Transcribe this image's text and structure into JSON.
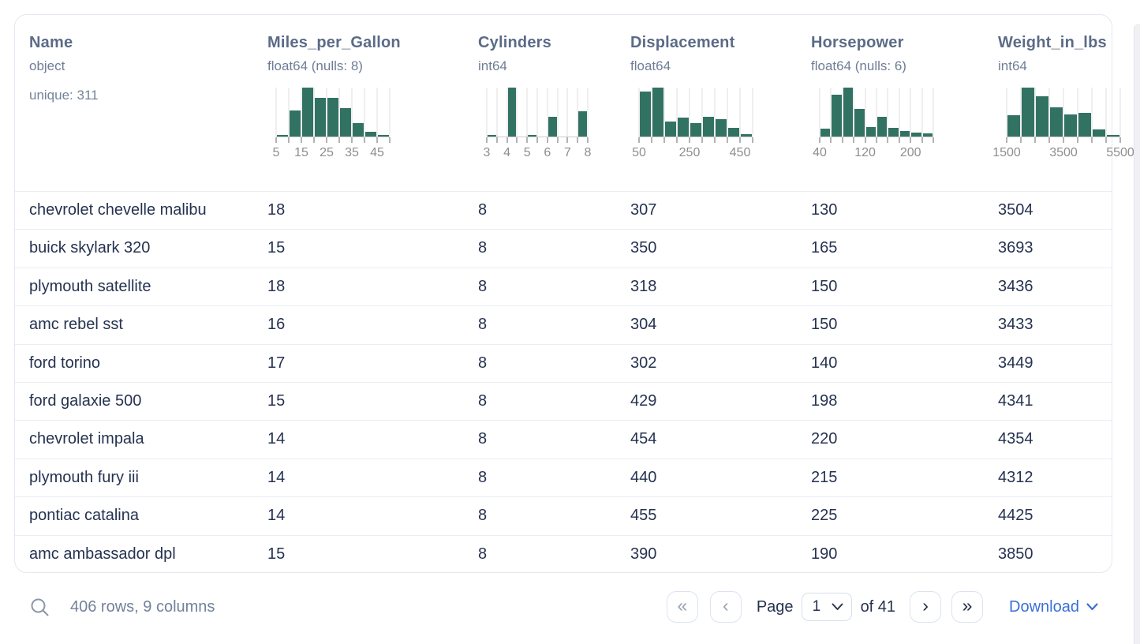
{
  "table": {
    "columns": [
      {
        "name": "Name",
        "dtype": "object",
        "extra": "unique: 311",
        "histogram": null
      },
      {
        "name": "Miles_per_Gallon",
        "dtype": "float64 (nulls: 8)",
        "histogram": {
          "bars": [
            3,
            53,
            100,
            79,
            79,
            58,
            28,
            9,
            3
          ],
          "tick_labels": [
            {
              "text": "5",
              "idx": 0
            },
            {
              "text": "15",
              "idx": 2
            },
            {
              "text": "25",
              "idx": 4
            },
            {
              "text": "35",
              "idx": 6
            },
            {
              "text": "45",
              "idx": 8
            }
          ]
        }
      },
      {
        "name": "Cylinders",
        "dtype": "int64",
        "histogram": {
          "bars": [
            3,
            0,
            100,
            0,
            3,
            0,
            41,
            0,
            0,
            52
          ],
          "tick_labels": [
            {
              "text": "3",
              "idx": 0
            },
            {
              "text": "4",
              "idx": 2
            },
            {
              "text": "5",
              "idx": 4
            },
            {
              "text": "6",
              "idx": 6
            },
            {
              "text": "7",
              "idx": 8
            },
            {
              "text": "8",
              "idx": 10
            }
          ]
        }
      },
      {
        "name": "Displacement",
        "dtype": "float64",
        "histogram": {
          "bars": [
            92,
            100,
            31,
            38,
            27,
            41,
            35,
            17,
            5
          ],
          "tick_labels": [
            {
              "text": "50",
              "idx": 0
            },
            {
              "text": "250",
              "idx": 4
            },
            {
              "text": "450",
              "idx": 8
            }
          ]
        }
      },
      {
        "name": "Horsepower",
        "dtype": "float64 (nulls: 6)",
        "histogram": {
          "bars": [
            16,
            85,
            100,
            56,
            19,
            41,
            18,
            11,
            8,
            6
          ],
          "tick_labels": [
            {
              "text": "40",
              "idx": 0
            },
            {
              "text": "120",
              "idx": 4
            },
            {
              "text": "200",
              "idx": 8
            }
          ]
        }
      },
      {
        "name": "Weight_in_lbs",
        "dtype": "int64",
        "histogram": {
          "bars": [
            43,
            100,
            83,
            60,
            45,
            48,
            15,
            3
          ],
          "tick_labels": [
            {
              "text": "1500",
              "idx": 0
            },
            {
              "text": "3500",
              "idx": 4
            },
            {
              "text": "5500",
              "idx": 8
            }
          ]
        }
      }
    ],
    "rows": [
      [
        "chevrolet chevelle malibu",
        "18",
        "8",
        "307",
        "130",
        "3504"
      ],
      [
        "buick skylark 320",
        "15",
        "8",
        "350",
        "165",
        "3693"
      ],
      [
        "plymouth satellite",
        "18",
        "8",
        "318",
        "150",
        "3436"
      ],
      [
        "amc rebel sst",
        "16",
        "8",
        "304",
        "150",
        "3433"
      ],
      [
        "ford torino",
        "17",
        "8",
        "302",
        "140",
        "3449"
      ],
      [
        "ford galaxie 500",
        "15",
        "8",
        "429",
        "198",
        "4341"
      ],
      [
        "chevrolet impala",
        "14",
        "8",
        "454",
        "220",
        "4354"
      ],
      [
        "plymouth fury iii",
        "14",
        "8",
        "440",
        "215",
        "4312"
      ],
      [
        "pontiac catalina",
        "14",
        "8",
        "455",
        "225",
        "4425"
      ],
      [
        "amc ambassador dpl",
        "15",
        "8",
        "390",
        "190",
        "3850"
      ]
    ]
  },
  "footer": {
    "stats": "406 rows, 9 columns",
    "pagination": {
      "first_glyph": "«",
      "prev_glyph": "‹",
      "page_label": "Page",
      "page_value": "1",
      "total_label": "of 41",
      "next_glyph": "›",
      "last_glyph": "»"
    },
    "download_label": "Download"
  },
  "colors": {
    "histogram_bar": "#327263",
    "link_blue": "#3a6fd8"
  }
}
